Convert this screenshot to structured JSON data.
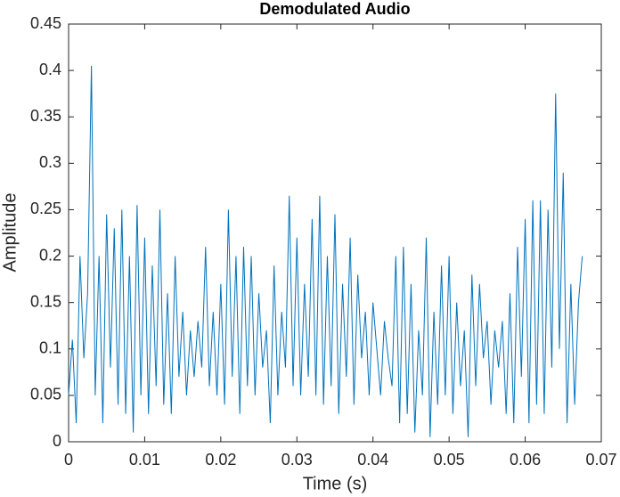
{
  "chart_data": {
    "type": "line",
    "title": "Demodulated  Audio",
    "x_label": "Time (s)",
    "y_label": "Amplitude",
    "x": [
      0,
      0.0005,
      0.001,
      0.0015,
      0.002,
      0.0025,
      0.003,
      0.0035,
      0.004,
      0.0045,
      0.005,
      0.0055,
      0.006,
      0.0065,
      0.007,
      0.0075,
      0.008,
      0.0085,
      0.009,
      0.0095,
      0.01,
      0.0105,
      0.011,
      0.0115,
      0.012,
      0.0125,
      0.013,
      0.0135,
      0.014,
      0.0145,
      0.015,
      0.0155,
      0.016,
      0.0165,
      0.017,
      0.0175,
      0.018,
      0.0185,
      0.019,
      0.0195,
      0.02,
      0.0205,
      0.021,
      0.0215,
      0.022,
      0.0225,
      0.023,
      0.0235,
      0.024,
      0.0245,
      0.025,
      0.0255,
      0.026,
      0.0265,
      0.027,
      0.0275,
      0.028,
      0.0285,
      0.029,
      0.0295,
      0.03,
      0.0305,
      0.031,
      0.0315,
      0.032,
      0.0325,
      0.033,
      0.0335,
      0.034,
      0.0345,
      0.035,
      0.0355,
      0.036,
      0.0365,
      0.037,
      0.0375,
      0.038,
      0.0385,
      0.039,
      0.0395,
      0.04,
      0.0405,
      0.041,
      0.0415,
      0.042,
      0.0425,
      0.043,
      0.0435,
      0.044,
      0.0445,
      0.045,
      0.0455,
      0.046,
      0.0465,
      0.047,
      0.0475,
      0.048,
      0.0485,
      0.049,
      0.0495,
      0.05,
      0.0505,
      0.051,
      0.0515,
      0.052,
      0.0525,
      0.053,
      0.0535,
      0.054,
      0.0545,
      0.055,
      0.0555,
      0.056,
      0.0565,
      0.057,
      0.0575,
      0.058,
      0.0585,
      0.059,
      0.0595,
      0.06,
      0.0605,
      0.061,
      0.0615,
      0.062,
      0.0625,
      0.063,
      0.0635,
      0.064,
      0.0645,
      0.065,
      0.0655,
      0.066,
      0.0665,
      0.067,
      0.0675
    ],
    "series": [
      {
        "color": "#0072bd",
        "values": [
          0.05,
          0.11,
          0.02,
          0.2,
          0.09,
          0.16,
          0.405,
          0.05,
          0.2,
          0.02,
          0.245,
          0.08,
          0.23,
          0.04,
          0.25,
          0.03,
          0.2,
          0.01,
          0.255,
          0.05,
          0.22,
          0.03,
          0.19,
          0.06,
          0.25,
          0.04,
          0.16,
          0.03,
          0.2,
          0.07,
          0.14,
          0.05,
          0.12,
          0.07,
          0.13,
          0.08,
          0.21,
          0.06,
          0.14,
          0.05,
          0.17,
          0.04,
          0.25,
          0.07,
          0.2,
          0.03,
          0.21,
          0.06,
          0.2,
          0.05,
          0.16,
          0.08,
          0.12,
          0.02,
          0.19,
          0.05,
          0.14,
          0.08,
          0.265,
          0.06,
          0.22,
          0.05,
          0.17,
          0.07,
          0.24,
          0.05,
          0.265,
          0.04,
          0.2,
          0.06,
          0.245,
          0.03,
          0.17,
          0.07,
          0.22,
          0.04,
          0.18,
          0.09,
          0.14,
          0.05,
          0.15,
          0.1,
          0.05,
          0.13,
          0.09,
          0.06,
          0.2,
          0.02,
          0.21,
          0.03,
          0.17,
          0.01,
          0.12,
          0.05,
          0.22,
          0.005,
          0.14,
          0.04,
          0.19,
          0.05,
          0.2,
          0.03,
          0.15,
          0.06,
          0.12,
          0.005,
          0.18,
          0.06,
          0.17,
          0.09,
          0.13,
          0.04,
          0.12,
          0.08,
          0.13,
          0.03,
          0.16,
          0.02,
          0.21,
          0.07,
          0.24,
          0.02,
          0.26,
          0.04,
          0.26,
          0.03,
          0.25,
          0.08,
          0.375,
          0.1,
          0.29,
          0.02,
          0.17,
          0.04,
          0.15,
          0.2
        ]
      }
    ],
    "xlim": [
      0,
      0.07
    ],
    "xticks": [
      0,
      0.01,
      0.02,
      0.03,
      0.04,
      0.05,
      0.06,
      0.07
    ],
    "ylim": [
      0,
      0.45
    ],
    "yticks": [
      0,
      0.05,
      0.1,
      0.15,
      0.2,
      0.25,
      0.3,
      0.35,
      0.4,
      0.45
    ]
  }
}
